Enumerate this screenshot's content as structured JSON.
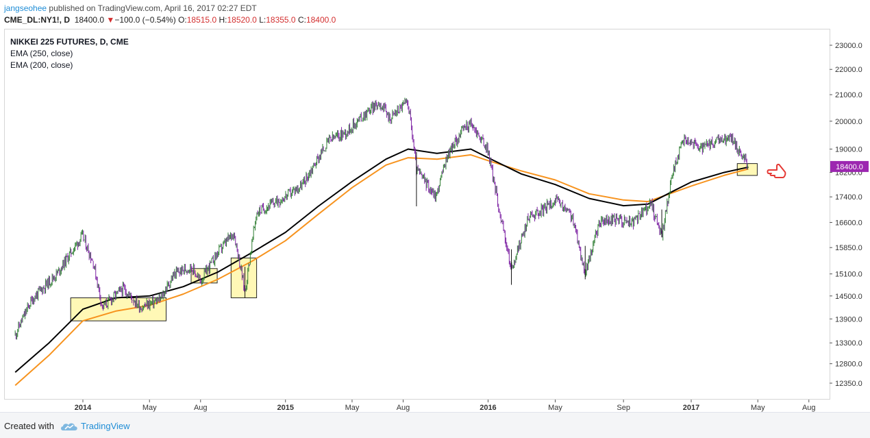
{
  "header": {
    "author": "jangseohee",
    "published_text": " published on TradingView.com, April 16, 2017 02:27 EDT",
    "symbol": "CME_DL:NY1!, D",
    "last": "18400.0",
    "change": "−100.0 (−0.54%)",
    "open_label": "O:",
    "open": "18515.0",
    "high_label": "H:",
    "high": "18520.0",
    "low_label": "L:",
    "low": "18355.0",
    "close_label": "C:",
    "close": "18400.0"
  },
  "legend": {
    "title": "NIKKEI 225 FUTURES, D, CME",
    "ema1": "EMA (250, close)",
    "ema2": "EMA (200, close)"
  },
  "footer": {
    "created_with": "Created with",
    "brand": "TradingView"
  },
  "colors": {
    "ema250": "#000000",
    "ema200": "#f7931e",
    "up_bar": "#2e7d32",
    "down_bar": "#7b1fa2",
    "price_label_bg": "#9c27b0",
    "highlight_fill": "#fff59d",
    "pointer": "#e53935"
  },
  "icons": {
    "pointer": "hand-pointing-left-icon",
    "logo": "tradingview-cloud-icon"
  },
  "chart_data": {
    "type": "line",
    "title": "NIKKEI 225 FUTURES, D, CME",
    "x_ticks": [
      "2014",
      "May",
      "Aug",
      "2015",
      "May",
      "Aug",
      "2016",
      "May",
      "Sep",
      "2017",
      "May",
      "Aug"
    ],
    "x_tick_dates": [
      "2014-01-01",
      "2014-05-01",
      "2014-08-01",
      "2015-01-01",
      "2015-05-01",
      "2015-08-01",
      "2016-01-01",
      "2016-05-01",
      "2016-09-01",
      "2017-01-01",
      "2017-05-01",
      "2017-08-01"
    ],
    "y_ticks": [
      12350,
      12800,
      13300,
      13900,
      14500,
      15100,
      15850,
      16600,
      17400,
      18200,
      19000,
      20000,
      21000,
      22000,
      23000
    ],
    "y_tick_labels": [
      "12350.0",
      "12800.0",
      "13300.0",
      "13900.0",
      "14500.0",
      "15100.0",
      "15850.0",
      "16600.0",
      "17400.0",
      "18200.0",
      "19000.0",
      "20000.0",
      "21000.0",
      "22000.0",
      "23000.0"
    ],
    "scale": "log",
    "last_price_label": "18400.0",
    "series": [
      {
        "name": "NIKKEI 225 FUTURES",
        "style": "ohlc",
        "x": [
          "2013-09-01",
          "2013-10-01",
          "2013-11-15",
          "2013-12-31",
          "2014-01-20",
          "2014-02-05",
          "2014-03-15",
          "2014-04-15",
          "2014-05-20",
          "2014-06-15",
          "2014-07-15",
          "2014-08-01",
          "2014-09-01",
          "2014-09-30",
          "2014-10-20",
          "2014-11-10",
          "2014-12-10",
          "2014-12-31",
          "2015-02-01",
          "2015-03-20",
          "2015-04-20",
          "2015-05-31",
          "2015-06-20",
          "2015-07-08",
          "2015-07-31",
          "2015-08-10",
          "2015-08-25",
          "2015-09-29",
          "2015-10-20",
          "2015-11-20",
          "2015-12-01",
          "2015-12-31",
          "2016-01-21",
          "2016-02-12",
          "2016-03-15",
          "2016-04-10",
          "2016-05-01",
          "2016-05-31",
          "2016-06-24",
          "2016-07-20",
          "2016-08-20",
          "2016-09-20",
          "2016-10-20",
          "2016-11-09",
          "2016-11-30",
          "2016-12-20",
          "2017-01-20",
          "2017-02-20",
          "2017-03-15",
          "2017-04-14"
        ],
        "close": [
          13500,
          14400,
          15100,
          16200,
          15400,
          14200,
          14700,
          14200,
          14400,
          15100,
          15300,
          14900,
          15700,
          16300,
          14600,
          16900,
          17200,
          17400,
          17800,
          19300,
          19600,
          20400,
          20700,
          20100,
          20600,
          20700,
          18300,
          17400,
          18800,
          19800,
          19900,
          19000,
          17000,
          15200,
          16800,
          17000,
          17300,
          16800,
          15100,
          16600,
          16700,
          16600,
          17200,
          16200,
          18300,
          19400,
          19000,
          19300,
          19400,
          18400
        ]
      },
      {
        "name": "EMA (250, close)",
        "x": [
          "2013-09-01",
          "2013-11-01",
          "2014-01-01",
          "2014-03-01",
          "2014-05-01",
          "2014-07-01",
          "2014-09-01",
          "2014-11-01",
          "2015-01-01",
          "2015-03-01",
          "2015-05-01",
          "2015-07-01",
          "2015-08-10",
          "2015-10-01",
          "2015-12-01",
          "2016-01-01",
          "2016-03-01",
          "2016-05-01",
          "2016-07-01",
          "2016-09-01",
          "2016-10-15",
          "2016-12-01",
          "2017-01-01",
          "2017-03-01",
          "2017-04-14"
        ],
        "values": [
          12600,
          13300,
          14150,
          14450,
          14500,
          14750,
          15150,
          15700,
          16300,
          17100,
          17900,
          18650,
          19000,
          18850,
          19000,
          18700,
          18150,
          17800,
          17350,
          17120,
          17170,
          17600,
          17880,
          18200,
          18380
        ]
      },
      {
        "name": "EMA (200, close)",
        "x": [
          "2013-09-01",
          "2013-11-01",
          "2014-01-01",
          "2014-03-01",
          "2014-05-01",
          "2014-07-01",
          "2014-09-01",
          "2014-11-01",
          "2015-01-01",
          "2015-03-01",
          "2015-05-01",
          "2015-07-01",
          "2015-08-10",
          "2015-10-01",
          "2015-12-01",
          "2016-01-01",
          "2016-03-01",
          "2016-05-01",
          "2016-07-01",
          "2016-09-01",
          "2016-10-15",
          "2016-12-01",
          "2017-01-01",
          "2017-03-01",
          "2017-04-14"
        ],
        "values": [
          12300,
          13000,
          13850,
          14100,
          14250,
          14550,
          14950,
          15450,
          16050,
          16850,
          17700,
          18450,
          18700,
          18650,
          18800,
          18600,
          18250,
          17950,
          17500,
          17300,
          17250,
          17550,
          17750,
          18100,
          18320
        ]
      }
    ],
    "annotations": [
      {
        "type": "rectangle",
        "x0": "2013-12-10",
        "x1": "2014-05-31",
        "y0": 13850,
        "y1": 14450
      },
      {
        "type": "rectangle",
        "x0": "2014-07-15",
        "x1": "2014-08-31",
        "y0": 14850,
        "y1": 15250
      },
      {
        "type": "rectangle",
        "x0": "2014-09-25",
        "x1": "2014-11-10",
        "y0": 14450,
        "y1": 15550
      },
      {
        "type": "rectangle",
        "x0": "2017-03-25",
        "x1": "2017-04-30",
        "y0": 18100,
        "y1": 18500
      }
    ]
  }
}
